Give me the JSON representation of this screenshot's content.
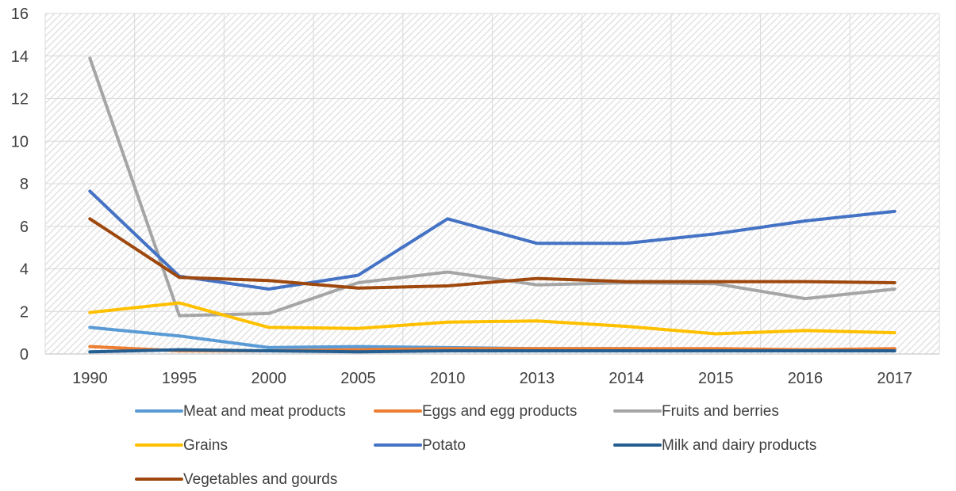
{
  "chart_data": {
    "type": "line",
    "title": "",
    "xlabel": "",
    "ylabel": "",
    "x": [
      "1990",
      "1995",
      "2000",
      "2005",
      "2010",
      "2013",
      "2014",
      "2015",
      "2016",
      "2017"
    ],
    "ylim": [
      0,
      16
    ],
    "yticks": [
      "0",
      "2",
      "4",
      "6",
      "8",
      "10",
      "12",
      "14",
      "16"
    ],
    "grid": true,
    "legend_position": "bottom",
    "series": [
      {
        "name": "Meat and meat products",
        "color": "#5B9BD5",
        "values": [
          1.25,
          0.85,
          0.3,
          0.35,
          0.3,
          0.25,
          0.25,
          0.2,
          0.2,
          0.2
        ]
      },
      {
        "name": "Eggs and egg products",
        "color": "#ED7D31",
        "values": [
          0.35,
          0.15,
          0.15,
          0.2,
          0.25,
          0.25,
          0.25,
          0.25,
          0.2,
          0.25
        ]
      },
      {
        "name": "Fruits and berries",
        "color": "#A5A5A5",
        "values": [
          13.9,
          1.8,
          1.9,
          3.35,
          3.85,
          3.25,
          3.35,
          3.3,
          2.6,
          3.05
        ]
      },
      {
        "name": "Grains",
        "color": "#FFC000",
        "values": [
          1.95,
          2.4,
          1.25,
          1.2,
          1.5,
          1.55,
          1.3,
          0.95,
          1.1,
          1.0
        ]
      },
      {
        "name": "Potato",
        "color": "#4472C4",
        "values": [
          7.65,
          3.65,
          3.05,
          3.7,
          6.35,
          5.2,
          5.2,
          5.65,
          6.25,
          6.7
        ]
      },
      {
        "name": "Milk and dairy products",
        "color": "#255E91",
        "values": [
          0.1,
          0.2,
          0.15,
          0.1,
          0.15,
          0.15,
          0.15,
          0.15,
          0.15,
          0.15
        ]
      },
      {
        "name": "Vegetables and gourds",
        "color": "#9E480E",
        "values": [
          6.35,
          3.6,
          3.45,
          3.1,
          3.2,
          3.55,
          3.4,
          3.4,
          3.4,
          3.35
        ]
      }
    ]
  }
}
